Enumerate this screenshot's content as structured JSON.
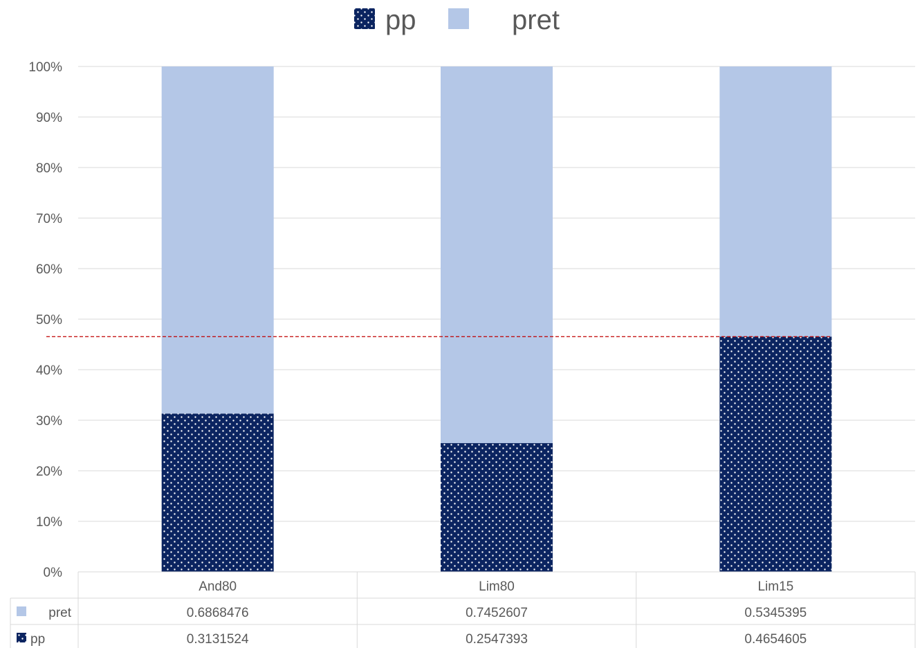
{
  "chart_data": {
    "type": "bar",
    "stacked": "percent",
    "categories": [
      "And80",
      "Lim80",
      "Lim15"
    ],
    "series": [
      {
        "name": "pp",
        "values": [
          0.3131524,
          0.2547393,
          0.4654605
        ],
        "color": "#0b2460",
        "pattern": "dotted"
      },
      {
        "name": "pret",
        "values": [
          0.6868476,
          0.7452607,
          0.5345395
        ],
        "color": "#b4c7e7",
        "pattern": "solid"
      }
    ],
    "value_labels": {
      "pp": [
        "0.3131524",
        "0.2547393",
        "0.4654605"
      ],
      "pret": [
        "0.6868476",
        "0.7452607",
        "0.5345395"
      ]
    },
    "ylim": [
      0,
      1
    ],
    "yticks": [
      "0%",
      "10%",
      "20%",
      "30%",
      "40%",
      "50%",
      "60%",
      "70%",
      "80%",
      "90%",
      "100%"
    ],
    "grid": true,
    "legend_position": "top",
    "data_table": true,
    "reference_line": {
      "value": 0.4654605,
      "color": "#c00000",
      "style": "dashed"
    }
  }
}
